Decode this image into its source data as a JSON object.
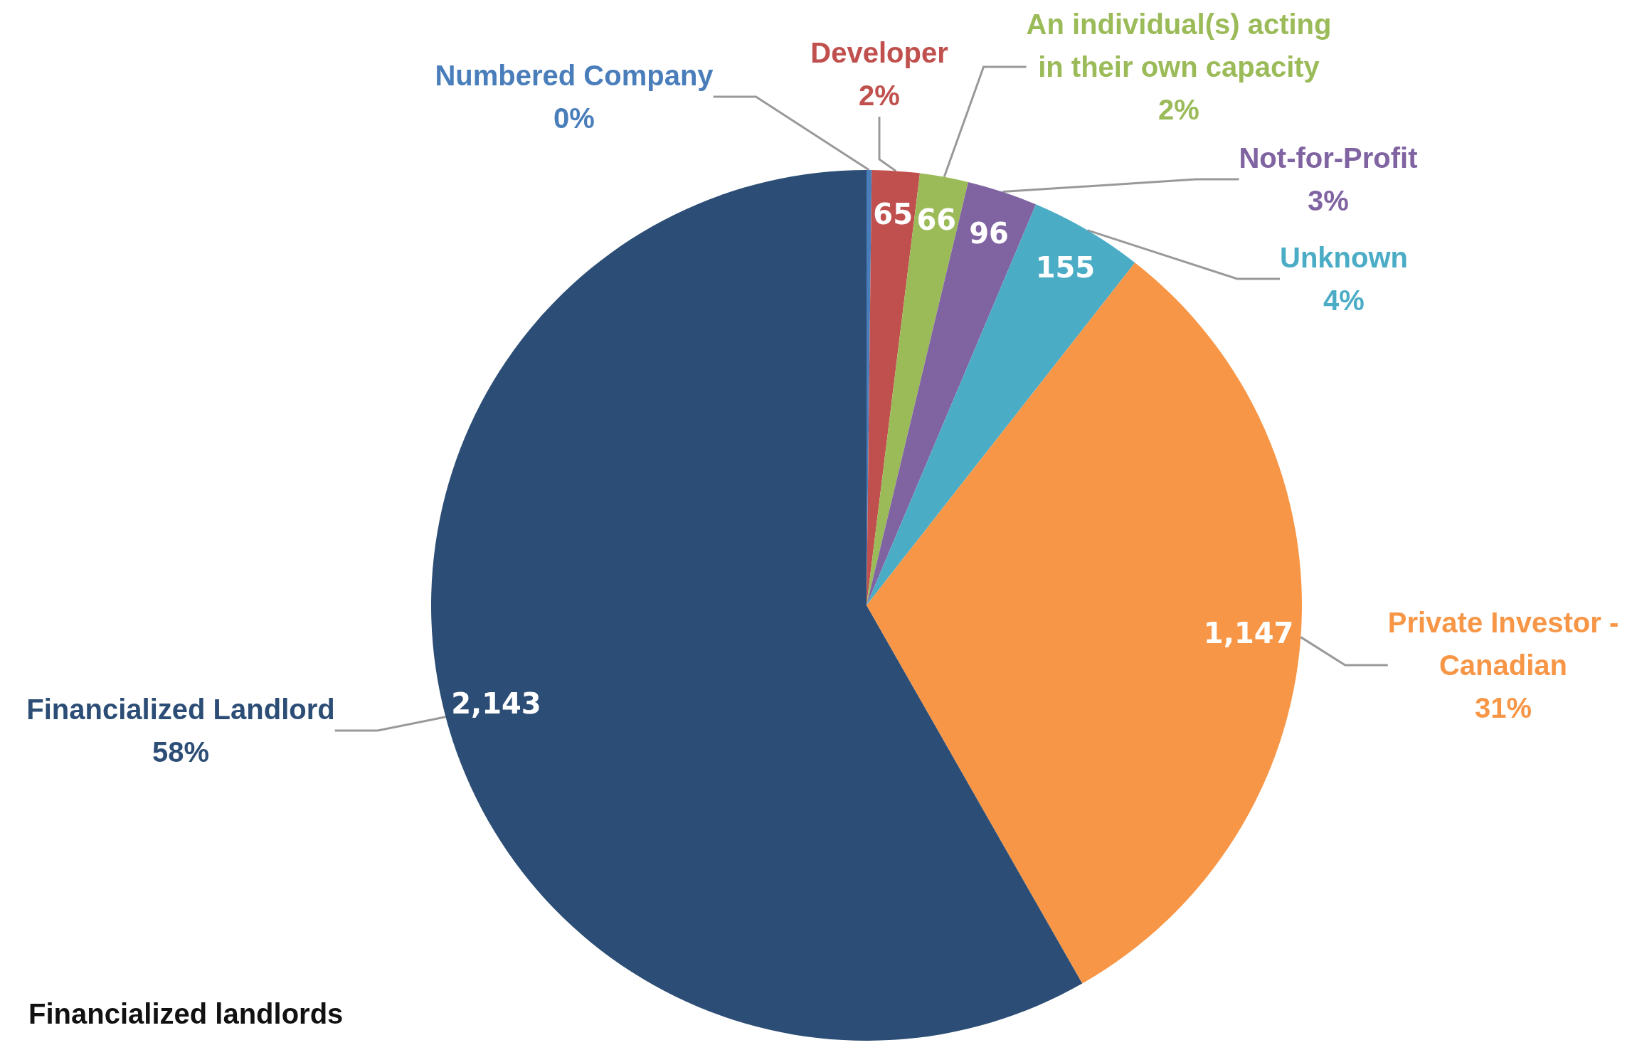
{
  "chart_data": {
    "type": "pie",
    "title": "Financialized landlords",
    "categories": [
      "Numbered Company",
      "Developer",
      "An individual(s) acting\nin their own capacity",
      "Not-for-Profit",
      "Unknown",
      "Private Investor -\nCanadian",
      "Financialized Landlord"
    ],
    "values": [
      7,
      65,
      66,
      96,
      155,
      1147,
      2143
    ],
    "value_labels": [
      null,
      "65",
      "66",
      "96",
      "155",
      "1,147",
      "2,143"
    ],
    "colors": [
      "#4a7ebb",
      "#c0504d",
      "#9bbb59",
      "#8064a2",
      "#4bacc6",
      "#f79646",
      "#2c4d75"
    ],
    "annotations": [
      "0%",
      "2%",
      "2%",
      "3%",
      "4%",
      "31%",
      "58%"
    ]
  }
}
